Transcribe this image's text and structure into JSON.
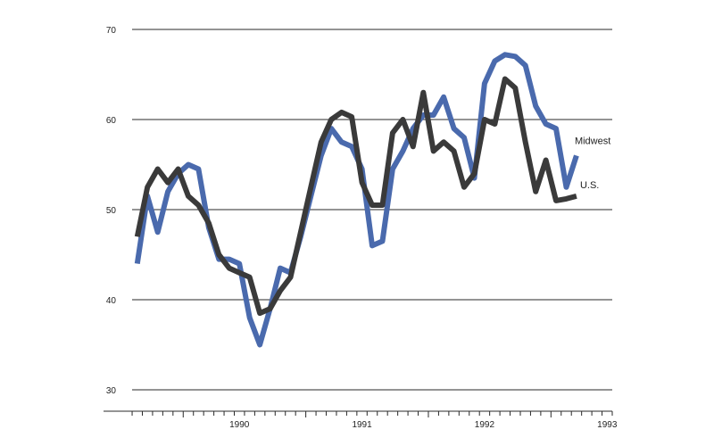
{
  "chart_data": {
    "type": "line",
    "title": "",
    "xlabel": "",
    "ylabel": "",
    "ylim": [
      30,
      70
    ],
    "yticks": [
      30,
      40,
      50,
      60,
      70
    ],
    "xlim": [
      1989.583,
      1993.5
    ],
    "xtick_labels": [
      "1990",
      "1991",
      "1992",
      "1993"
    ],
    "grid": true,
    "x_start_year": 1989,
    "x_start_month": 8,
    "series": [
      {
        "name": "Midwest",
        "color": "#4a6aad",
        "values": [
          44.0,
          51.5,
          47.5,
          52.0,
          54.0,
          55.0,
          54.5,
          48.0,
          44.5,
          44.5,
          44.0,
          38.0,
          35.0,
          39.0,
          43.5,
          43.0,
          47.0,
          51.5,
          56.0,
          59.0,
          57.5,
          57.0,
          54.5,
          46.0,
          46.5,
          54.5,
          56.5,
          59.0,
          60.5,
          60.5,
          62.5,
          59.0,
          58.0,
          53.5,
          64.0,
          66.5,
          67.2,
          67.0,
          66.0,
          61.5,
          59.5,
          59.0,
          52.5,
          56.0
        ]
      },
      {
        "name": "U.S.",
        "color": "#3a3a3a",
        "values": [
          47.0,
          52.5,
          54.5,
          53.0,
          54.5,
          51.5,
          50.5,
          48.5,
          45.0,
          43.5,
          43.0,
          42.5,
          38.5,
          39.0,
          41.0,
          42.5,
          47.5,
          52.5,
          57.5,
          60.0,
          60.8,
          60.3,
          53.0,
          50.5,
          50.5,
          58.5,
          60.0,
          57.0,
          63.0,
          56.5,
          57.5,
          56.5,
          52.5,
          54.0,
          60.0,
          59.5,
          64.5,
          63.5,
          57.5,
          52.0,
          55.5,
          51.0,
          51.2,
          51.5
        ]
      }
    ]
  }
}
